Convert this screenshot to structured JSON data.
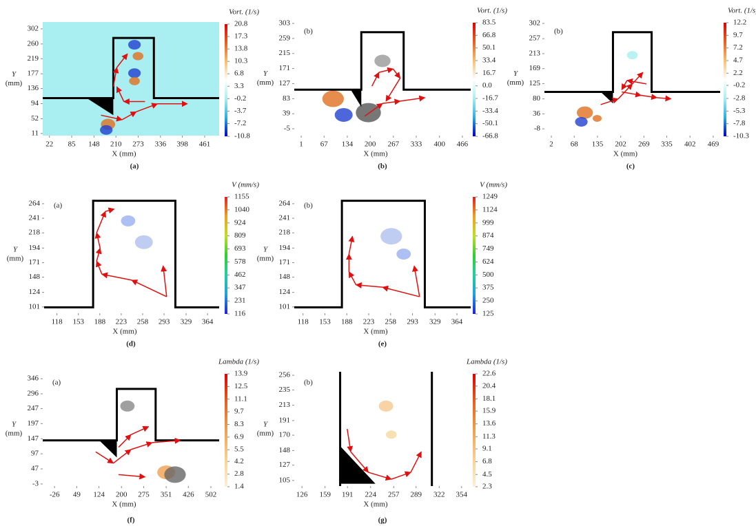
{
  "chart_data": [
    {
      "type": "vector-field",
      "caption": "(a)",
      "x_label": "X (mm)",
      "y_label": "Y",
      "y_label_unit": "(mm)",
      "colorbar_title": "Vort. (1/s)",
      "background": "#a9eef0",
      "xlim": [
        3,
        502
      ],
      "xticks": [
        22,
        85,
        148,
        210,
        273,
        336,
        398,
        461
      ],
      "ylim": [
        5,
        321
      ],
      "yticks": [
        11,
        52,
        94,
        136,
        177,
        219,
        260,
        302
      ],
      "clim": [
        -10.8,
        20.8
      ],
      "cticks": [
        20.8,
        17.3,
        13.8,
        10.3,
        6.8,
        3.3,
        -0.2,
        -3.7,
        -7.2,
        -10.8
      ],
      "colorbar_colors": [
        "#0000c8",
        "#2ab0e0",
        "#a9eef0",
        "#ffffff",
        "#f5c070",
        "#e86020",
        "#e00000"
      ]
    },
    {
      "type": "vector-field",
      "caption": "(b)",
      "inner_label": "(b)",
      "x_label": "X (mm)",
      "y_label": "Y",
      "y_label_unit": "(mm)",
      "colorbar_title": "Vort. (1/s)",
      "background": "#ffffff",
      "xlim": [
        -19,
        490
      ],
      "xticks": [
        1,
        67,
        134,
        200,
        267,
        333,
        400,
        466
      ],
      "ylim": [
        -25,
        311
      ],
      "yticks": [
        -5,
        39,
        83,
        127,
        171,
        215,
        259,
        303
      ],
      "clim": [
        -66.8,
        83.5
      ],
      "cticks": [
        83.5,
        66.8,
        50.1,
        33.4,
        16.7,
        {
          "value": 0,
          "label": "0.0"
        },
        -16.7,
        -33.4,
        -50.1,
        -66.8
      ],
      "colorbar_colors": [
        "#0000c8",
        "#2ab0e0",
        "#a9eef0",
        "#ffffff",
        "#f5c070",
        "#e86020",
        "#e00000"
      ]
    },
    {
      "type": "vector-field",
      "caption": "(c)",
      "inner_label": "(b)",
      "x_label": "X (mm)",
      "y_label": "Y",
      "y_label_unit": "(mm)",
      "colorbar_title": "Vort. (1/s)",
      "background": "#ffffff",
      "xlim": [
        -18,
        489
      ],
      "xticks": [
        2,
        68,
        135,
        202,
        269,
        335,
        402,
        469
      ],
      "ylim": [
        -28,
        310
      ],
      "yticks": [
        -8,
        36,
        80,
        125,
        169,
        213,
        257,
        302
      ],
      "clim": [
        -10.3,
        12.2
      ],
      "cticks": [
        12.2,
        9.7,
        7.2,
        4.7,
        2.2,
        -0.2,
        -2.8,
        -5.3,
        -7.8,
        -10.3
      ],
      "colorbar_colors": [
        "#0000c8",
        "#2ab0e0",
        "#a9eef0",
        "#ffffff",
        "#f5c070",
        "#e86020",
        "#e00000"
      ]
    },
    {
      "type": "vector-field",
      "caption": "(d)",
      "inner_label": "(a)",
      "x_label": "X (mm)",
      "y_label": "Y",
      "y_label_unit": "(mm)",
      "colorbar_title": "V (mm/s)",
      "background": "#ffffff",
      "xlim": [
        97,
        383
      ],
      "xticks": [
        118,
        153,
        188,
        223,
        258,
        293,
        329,
        364
      ],
      "ylim": [
        91,
        278
      ],
      "yticks": [
        101,
        124,
        148,
        171,
        194,
        218,
        241,
        264
      ],
      "clim": [
        116,
        1155
      ],
      "cticks": [
        1155,
        1040,
        924,
        809,
        693,
        578,
        462,
        347,
        231,
        116
      ],
      "colorbar_colors": [
        "#2020e0",
        "#20a0e0",
        "#20d0a0",
        "#30d030",
        "#c0e020",
        "#f0a020",
        "#e02020"
      ]
    },
    {
      "type": "vector-field",
      "caption": "(e)",
      "inner_label": "(b)",
      "x_label": "X (mm)",
      "y_label": "Y",
      "y_label_unit": "(mm)",
      "colorbar_title": "V (mm/s)",
      "background": "#ffffff",
      "xlim": [
        104,
        386
      ],
      "xticks": [
        118,
        153,
        188,
        223,
        258,
        293,
        329,
        364
      ],
      "ylim": [
        91,
        278
      ],
      "yticks": [
        101,
        124,
        148,
        171,
        194,
        218,
        241,
        264
      ],
      "clim": [
        125,
        1249
      ],
      "cticks": [
        1249,
        1124,
        999,
        874,
        749,
        624,
        500,
        375,
        250,
        125
      ],
      "colorbar_colors": [
        "#2020e0",
        "#20a0e0",
        "#20d0a0",
        "#30d030",
        "#c0e020",
        "#f0a020",
        "#e02020"
      ]
    },
    {
      "type": "vector-field",
      "caption": "(f)",
      "inner_label": "(a)",
      "x_label": "X (mm)",
      "y_label": "Y",
      "y_label_unit": "(mm)",
      "colorbar_title": "Lambda (1/s)",
      "background": "#ffffff",
      "xlim": [
        -66,
        530
      ],
      "xticks": [
        -26,
        49,
        124,
        200,
        275,
        351,
        426,
        502
      ],
      "ylim": [
        -10,
        369
      ],
      "yticks": [
        -3,
        47,
        97,
        147,
        197,
        247,
        296,
        346
      ],
      "clim": [
        1.4,
        13.9
      ],
      "cticks": [
        13.9,
        12.5,
        11.1,
        9.7,
        8.3,
        6.9,
        5.5,
        4.2,
        2.8,
        1.4
      ],
      "colorbar_colors": [
        "#fdf0d8",
        "#f8d090",
        "#f0a050",
        "#e86020",
        "#e00000"
      ]
    },
    {
      "type": "vector-field",
      "caption": "(g)",
      "inner_label": "(b)",
      "x_label": "X (mm)",
      "y_label": "Y",
      "y_label_unit": "(mm)",
      "colorbar_title": "Lambda (1/s)",
      "background": "#ffffff",
      "xlim": [
        115,
        367
      ],
      "xticks": [
        126,
        159,
        191,
        224,
        257,
        289,
        322,
        354
      ],
      "ylim": [
        97,
        261
      ],
      "yticks": [
        105,
        127,
        148,
        170,
        191,
        213,
        235,
        256
      ],
      "clim": [
        2.3,
        22.6
      ],
      "cticks": [
        22.6,
        20.4,
        18.1,
        15.9,
        13.6,
        11.3,
        9.1,
        6.8,
        4.5,
        2.3
      ],
      "colorbar_colors": [
        "#fdf0d8",
        "#f8d090",
        "#f0a050",
        "#e86020",
        "#e00000"
      ]
    }
  ]
}
